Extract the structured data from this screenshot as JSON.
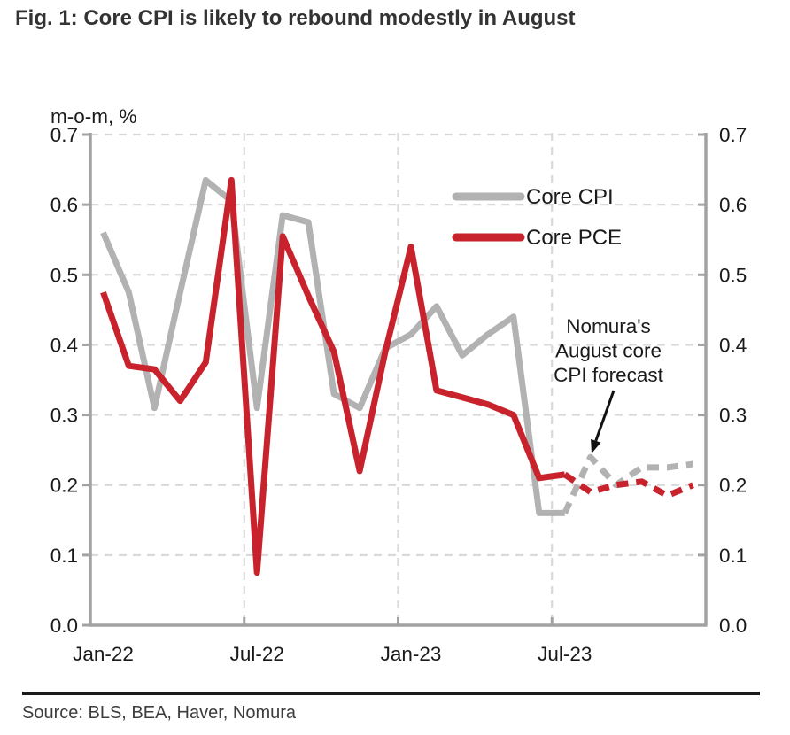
{
  "title": "Fig. 1: Core CPI is likely to rebound modestly in August",
  "axis_unit_label": "m-o-m, %",
  "source_line": "Source: BLS, BEA, Haver, Nomura",
  "legend": [
    {
      "label": "Core CPI",
      "color": "#b2b2b2"
    },
    {
      "label": "Core PCE",
      "color": "#c8232c"
    }
  ],
  "annotation": {
    "lines": [
      "Nomura's",
      "August core",
      "CPI forecast"
    ],
    "points_to": "dashed Core CPI peak at Aug-23"
  },
  "colors": {
    "core_cpi": "#b2b2b2",
    "core_pce": "#c8232c",
    "grid": "#d9d9d9",
    "axis": "#a2a2a2",
    "text": "#1a1a1a",
    "arrow": "#111111"
  },
  "chart_data": {
    "type": "line",
    "title": "Fig. 1: Core CPI is likely to rebound modestly in August",
    "ylabel": "m-o-m, %",
    "ylim": [
      0.0,
      0.7
    ],
    "yticks": [
      0.0,
      0.1,
      0.2,
      0.3,
      0.4,
      0.5,
      0.6,
      0.7
    ],
    "dual_y_axis": true,
    "grid": "dashed; horizontal at each 0.1, vertical at 6-month boundaries",
    "legend_position": "upper right inside plot",
    "categories": [
      "Jan-22",
      "Feb-22",
      "Mar-22",
      "Apr-22",
      "May-22",
      "Jun-22",
      "Jul-22",
      "Aug-22",
      "Sep-22",
      "Oct-22",
      "Nov-22",
      "Dec-22",
      "Jan-23",
      "Feb-23",
      "Mar-23",
      "Apr-23",
      "May-23",
      "Jun-23",
      "Jul-23",
      "Aug-23",
      "Sep-23",
      "Oct-23",
      "Nov-23",
      "Dec-23"
    ],
    "xtick_labels": [
      "Jan-22",
      "Jul-22",
      "Jan-23",
      "Jul-23"
    ],
    "xtick_label_indices": [
      0,
      6,
      12,
      18
    ],
    "vgrid_boundary_indices": [
      6,
      12,
      18
    ],
    "forecast_start_index": 18,
    "forecast_note": "values after Jul-23 are Nomura forecasts, drawn dashed",
    "series": [
      {
        "name": "Core CPI",
        "color": "#b2b2b2",
        "values": [
          0.56,
          0.475,
          0.31,
          0.475,
          0.635,
          0.605,
          0.31,
          0.585,
          0.575,
          0.33,
          0.31,
          0.395,
          0.415,
          0.455,
          0.385,
          0.415,
          0.44,
          0.16,
          0.16,
          0.24,
          0.2,
          0.225,
          0.225,
          0.23
        ]
      },
      {
        "name": "Core PCE",
        "color": "#c8232c",
        "values": [
          0.475,
          0.37,
          0.365,
          0.32,
          0.375,
          0.635,
          0.075,
          0.555,
          0.47,
          0.39,
          0.22,
          0.39,
          0.54,
          0.335,
          0.325,
          0.315,
          0.3,
          0.21,
          0.215,
          0.19,
          0.2,
          0.205,
          0.185,
          0.2
        ]
      }
    ]
  }
}
